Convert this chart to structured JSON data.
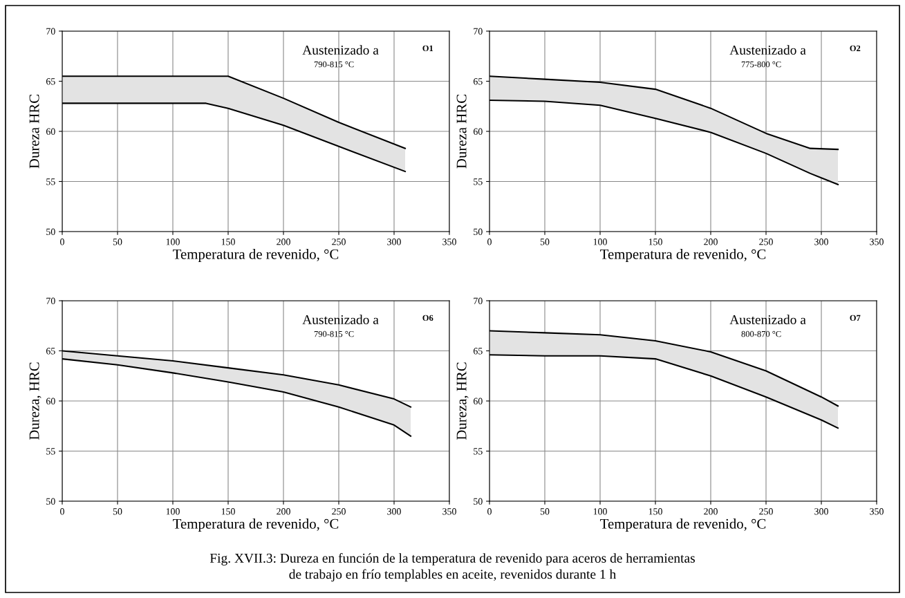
{
  "chart_data": [
    {
      "type": "line",
      "xlabel": "Temperatura de revenido, °C",
      "ylabel": "Dureza HRC",
      "x": [
        0,
        50,
        100,
        130,
        150,
        200,
        250,
        310
      ],
      "xlim": [
        0,
        350
      ],
      "ylim": [
        50,
        70
      ],
      "xticks": [
        0,
        50,
        100,
        150,
        200,
        250,
        300,
        350
      ],
      "yticks": [
        50,
        55,
        60,
        65,
        70
      ],
      "grid": true,
      "annotations": [
        "Austenizado a",
        "790-815 °C",
        "O1"
      ],
      "series": [
        {
          "color": "#000000",
          "values": [
            65.5,
            65.5,
            65.5,
            65.5,
            65.5,
            63.3,
            60.9,
            58.3
          ],
          "upper": [
            65.5,
            65.5,
            65.5,
            65.5,
            65.5,
            63.3,
            60.9,
            58.3
          ],
          "lower": [
            62.8,
            62.8,
            62.8,
            62.8,
            62.3,
            60.6,
            58.5,
            56.0
          ]
        },
        {
          "color": "#000000",
          "values": [
            62.8,
            62.8,
            62.8,
            62.8,
            62.3,
            60.6,
            58.5,
            56.0
          ]
        }
      ]
    },
    {
      "type": "line",
      "xlabel": "Temperatura de revenido, °C",
      "ylabel": "Dureza HRC",
      "x": [
        0,
        50,
        100,
        150,
        200,
        250,
        290,
        315
      ],
      "xlim": [
        0,
        350
      ],
      "ylim": [
        50,
        70
      ],
      "xticks": [
        0,
        50,
        100,
        150,
        200,
        250,
        300,
        350
      ],
      "yticks": [
        50,
        55,
        60,
        65,
        70
      ],
      "grid": true,
      "annotations": [
        "Austenizado a",
        "775-800 °C",
        "O2"
      ],
      "series": [
        {
          "color": "#000000",
          "values": [
            65.5,
            65.2,
            64.9,
            64.2,
            62.3,
            59.8,
            58.3,
            58.2
          ],
          "upper": [
            65.5,
            65.2,
            64.9,
            64.2,
            62.3,
            59.8,
            58.3,
            58.2
          ],
          "lower": [
            63.1,
            63.0,
            62.6,
            61.3,
            59.9,
            57.8,
            55.8,
            54.7
          ]
        },
        {
          "color": "#000000",
          "values": [
            63.1,
            63.0,
            62.6,
            61.3,
            59.9,
            57.8,
            55.8,
            54.7
          ]
        }
      ]
    },
    {
      "type": "line",
      "xlabel": "Temperatura de revenido, °C",
      "ylabel": "Dureza, HRC",
      "x": [
        0,
        50,
        100,
        150,
        200,
        250,
        300,
        315
      ],
      "xlim": [
        0,
        350
      ],
      "ylim": [
        50,
        70
      ],
      "xticks": [
        0,
        50,
        100,
        150,
        200,
        250,
        300,
        350
      ],
      "yticks": [
        50,
        55,
        60,
        65,
        70
      ],
      "grid": true,
      "annotations": [
        "Austenizado a",
        "790-815 °C",
        "O6"
      ],
      "series": [
        {
          "color": "#000000",
          "values": [
            65.0,
            64.5,
            64.0,
            63.3,
            62.6,
            61.6,
            60.2,
            59.4
          ],
          "upper": [
            65.0,
            64.5,
            64.0,
            63.3,
            62.6,
            61.6,
            60.2,
            59.4
          ],
          "lower": [
            64.2,
            63.6,
            62.8,
            61.9,
            60.9,
            59.4,
            57.6,
            56.5
          ]
        },
        {
          "color": "#000000",
          "values": [
            64.2,
            63.6,
            62.8,
            61.9,
            60.9,
            59.4,
            57.6,
            56.5
          ]
        }
      ]
    },
    {
      "type": "line",
      "xlabel": "Temperatura de revenido, °C",
      "ylabel": "Dureza, HRC",
      "x": [
        0,
        50,
        100,
        150,
        200,
        250,
        300,
        315
      ],
      "xlim": [
        0,
        350
      ],
      "ylim": [
        50,
        70
      ],
      "xticks": [
        0,
        50,
        100,
        150,
        200,
        250,
        300,
        350
      ],
      "yticks": [
        50,
        55,
        60,
        65,
        70
      ],
      "grid": true,
      "annotations": [
        "Austenizado a",
        "800-870 °C",
        "O7",
        "Fig. XVII.3: Dureza en función de la temperatura de revenido para aceros de herramientas\nde trabajo en frío templables en aceite, revenidos durante 1 h"
      ],
      "series": [
        {
          "color": "#000000",
          "values": [
            67.0,
            66.8,
            66.6,
            66.0,
            64.9,
            63.0,
            60.4,
            59.5
          ],
          "upper": [
            67.0,
            66.8,
            66.6,
            66.0,
            64.9,
            63.0,
            60.4,
            59.5
          ],
          "lower": [
            64.6,
            64.5,
            64.5,
            64.2,
            62.5,
            60.4,
            58.1,
            57.3
          ]
        },
        {
          "color": "#000000",
          "values": [
            64.6,
            64.5,
            64.5,
            64.2,
            62.5,
            60.4,
            58.1,
            57.3
          ]
        }
      ]
    }
  ]
}
